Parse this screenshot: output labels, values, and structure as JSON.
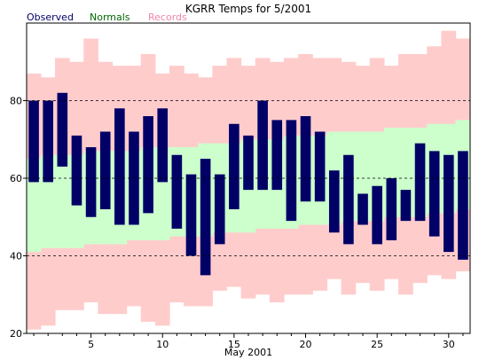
{
  "chart_data": {
    "type": "bar",
    "title": "KGRR Temps for 5/2001",
    "xlabel": "May 2001",
    "ylabel": "",
    "x": [
      1,
      2,
      3,
      4,
      5,
      6,
      7,
      8,
      9,
      10,
      11,
      12,
      13,
      14,
      15,
      16,
      17,
      18,
      19,
      20,
      21,
      22,
      23,
      24,
      25,
      26,
      27,
      28,
      29,
      30,
      31
    ],
    "xlim": [
      0.5,
      31.5
    ],
    "ylim": [
      20,
      100
    ],
    "x_ticks": [
      5,
      10,
      15,
      20,
      25,
      30
    ],
    "y_ticks": [
      20,
      40,
      60,
      80
    ],
    "grid_y": [
      40,
      60,
      80
    ],
    "legend": [
      "Observed",
      "Normals",
      "Records"
    ],
    "legend_placement": "top-left",
    "series": [
      {
        "name": "Records",
        "color": "#ffcccc",
        "high": [
          87,
          86,
          91,
          90,
          96,
          90,
          89,
          89,
          92,
          87,
          89,
          87,
          86,
          89,
          91,
          89,
          91,
          90,
          91,
          92,
          91,
          91,
          90,
          89,
          91,
          89,
          92,
          92,
          94,
          98,
          96
        ],
        "low": [
          21,
          22,
          26,
          26,
          28,
          25,
          25,
          27,
          23,
          22,
          28,
          27,
          27,
          31,
          32,
          29,
          30,
          28,
          30,
          30,
          31,
          34,
          30,
          33,
          31,
          34,
          30,
          33,
          35,
          34,
          36
        ]
      },
      {
        "name": "Normals",
        "color": "#ccffcc",
        "high": [
          65,
          66,
          66,
          66,
          67,
          67,
          67,
          67,
          68,
          68,
          68,
          68,
          69,
          69,
          69,
          70,
          70,
          70,
          71,
          71,
          71,
          72,
          72,
          72,
          72,
          73,
          73,
          73,
          74,
          74,
          75
        ],
        "low": [
          41,
          42,
          42,
          42,
          43,
          43,
          43,
          44,
          44,
          44,
          45,
          45,
          45,
          46,
          46,
          46,
          47,
          47,
          47,
          48,
          48,
          48,
          49,
          49,
          49,
          50,
          50,
          50,
          51,
          51,
          52
        ]
      },
      {
        "name": "Observed",
        "color": "#000066",
        "high": [
          80,
          80,
          82,
          71,
          68,
          72,
          78,
          72,
          76,
          78,
          66,
          61,
          65,
          61,
          74,
          71,
          80,
          75,
          75,
          76,
          72,
          62,
          66,
          56,
          58,
          60,
          57,
          69,
          67,
          66,
          67
        ],
        "low": [
          59,
          59,
          63,
          53,
          50,
          52,
          48,
          48,
          51,
          59,
          47,
          40,
          35,
          43,
          52,
          57,
          57,
          57,
          49,
          54,
          54,
          46,
          43,
          48,
          43,
          44,
          49,
          49,
          45,
          41,
          39
        ]
      }
    ]
  }
}
